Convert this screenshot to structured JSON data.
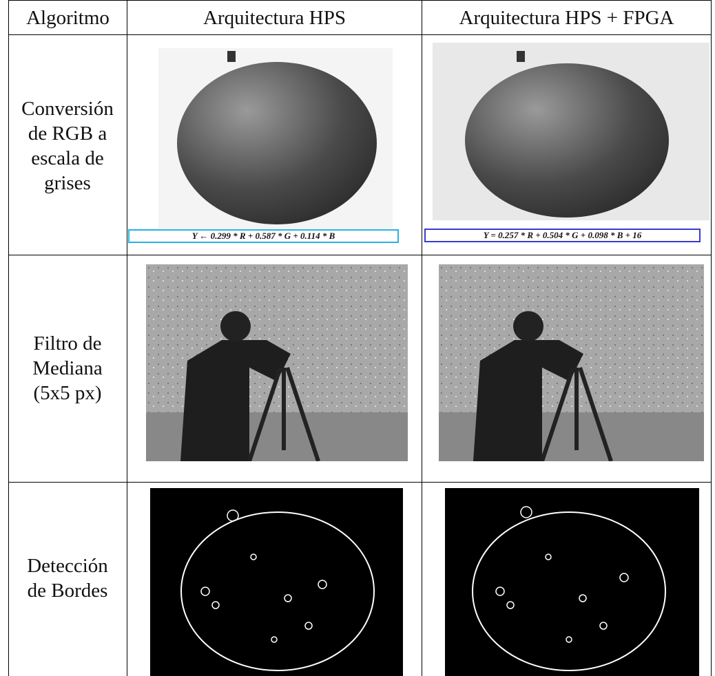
{
  "table": {
    "headers": [
      "Algoritmo",
      "Arquitectura HPS",
      "Arquitectura HPS + FPGA"
    ],
    "rows": [
      {
        "label": "Conversión de RGB a escala de grises",
        "captions": [
          "Y ← 0.299 * R + 0.587 * G + 0.114 * B",
          "Y = 0.257 * R + 0.504 * G + 0.098 * B + 16"
        ]
      },
      {
        "label": "Filtro de Mediana (5x5 px)"
      },
      {
        "label": "Detección de Bordes"
      }
    ]
  }
}
